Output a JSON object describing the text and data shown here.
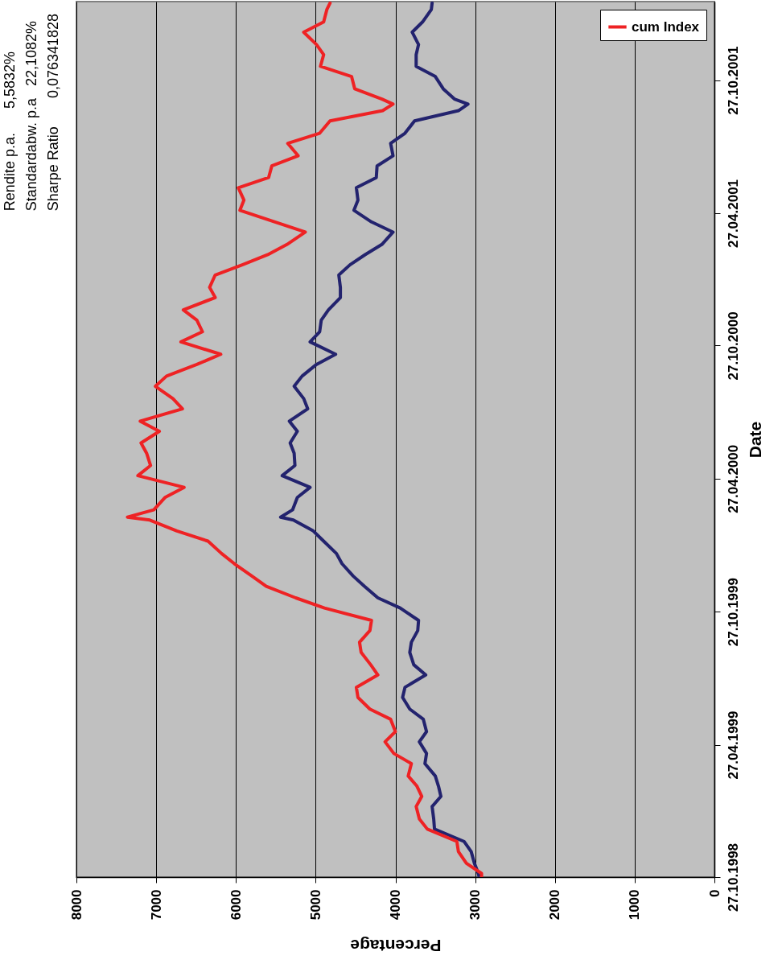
{
  "chart_data": {
    "type": "line",
    "orientation": "horizontal",
    "xlabel": "Percentage",
    "ylabel": "Date",
    "x": [
      "1998-10-27",
      "1998-11-01",
      "1998-11-15",
      "1998-12-01",
      "1998-12-15",
      "1999-01-01",
      "1999-01-15",
      "1999-02-01",
      "1999-02-15",
      "1999-03-01",
      "1999-03-15",
      "1999-04-01",
      "1999-04-15",
      "1999-05-01",
      "1999-05-15",
      "1999-06-01",
      "1999-06-15",
      "1999-07-01",
      "1999-07-15",
      "1999-08-01",
      "1999-08-15",
      "1999-09-01",
      "1999-09-15",
      "1999-10-01",
      "1999-10-15",
      "1999-11-01",
      "1999-11-15",
      "1999-12-01",
      "1999-12-15",
      "2000-01-01",
      "2000-01-15",
      "2000-02-01",
      "2000-02-15",
      "2000-03-01",
      "2000-03-05",
      "2000-03-15",
      "2000-04-01",
      "2000-04-15",
      "2000-05-01",
      "2000-05-15",
      "2000-06-01",
      "2000-06-15",
      "2000-07-01",
      "2000-07-15",
      "2000-08-01",
      "2000-08-15",
      "2000-09-01",
      "2000-09-15",
      "2000-10-01",
      "2000-10-15",
      "2000-11-01",
      "2000-11-15",
      "2000-12-01",
      "2000-12-15",
      "2001-01-01",
      "2001-01-15",
      "2001-02-01",
      "2001-02-15",
      "2001-03-01",
      "2001-03-15",
      "2001-04-01",
      "2001-04-15",
      "2001-05-01",
      "2001-05-15",
      "2001-06-01",
      "2001-06-15",
      "2001-07-01",
      "2001-07-15",
      "2001-08-01",
      "2001-08-15",
      "2001-09-01",
      "2001-09-15",
      "2001-09-24",
      "2001-10-01",
      "2001-10-15",
      "2001-11-01",
      "2001-11-15",
      "2001-12-01",
      "2001-12-15",
      "2002-01-01",
      "2002-01-15",
      "2002-02-01",
      "2002-02-10"
    ],
    "series": [
      {
        "color": "#23236e",
        "values": [
          2950,
          2960,
          3010,
          3050,
          3140,
          3510,
          3520,
          3540,
          3430,
          3460,
          3500,
          3630,
          3610,
          3700,
          3610,
          3650,
          3820,
          3910,
          3880,
          3620,
          3770,
          3820,
          3800,
          3720,
          3710,
          3940,
          4220,
          4390,
          4530,
          4670,
          4740,
          4900,
          5030,
          5280,
          5440,
          5290,
          5230,
          5070,
          5420,
          5260,
          5270,
          5320,
          5230,
          5330,
          5100,
          5150,
          5270,
          5170,
          4990,
          4750,
          5070,
          4950,
          4930,
          4840,
          4690,
          4690,
          4710,
          4570,
          4380,
          4170,
          4030,
          4300,
          4520,
          4470,
          4490,
          4240,
          4230,
          4030,
          4060,
          3880,
          3760,
          3210,
          3090,
          3260,
          3400,
          3500,
          3740,
          3740,
          3710,
          3790,
          3660,
          3550,
          3540
        ]
      },
      {
        "name": "cum Index",
        "color": "#ee2224",
        "values": [
          2920,
          2920,
          3110,
          3210,
          3230,
          3600,
          3700,
          3740,
          3670,
          3730,
          3840,
          3800,
          4020,
          4130,
          4000,
          4060,
          4320,
          4470,
          4490,
          4220,
          4310,
          4430,
          4450,
          4320,
          4300,
          4890,
          5250,
          5620,
          5800,
          6020,
          6180,
          6350,
          6740,
          7080,
          7360,
          7030,
          6890,
          6650,
          7230,
          7070,
          7120,
          7190,
          6960,
          7200,
          6670,
          6790,
          7010,
          6870,
          6490,
          6190,
          6690,
          6420,
          6490,
          6660,
          6260,
          6330,
          6260,
          5920,
          5600,
          5360,
          5130,
          5510,
          5950,
          5900,
          5970,
          5590,
          5550,
          5220,
          5350,
          4950,
          4820,
          4160,
          4030,
          4170,
          4510,
          4550,
          4940,
          4900,
          4990,
          5150,
          4900,
          4860,
          4820
        ]
      }
    ],
    "ylim": [
      "1998-10-27",
      "2002-02-12"
    ],
    "yticks": [
      {
        "value": "1998-10-27",
        "label": "27.10.1998"
      },
      {
        "value": "1999-04-27",
        "label": "27.04.1999"
      },
      {
        "value": "1999-10-27",
        "label": "27.10.1999"
      },
      {
        "value": "2000-04-27",
        "label": "27.04.2000"
      },
      {
        "value": "2000-10-27",
        "label": "27.10.2000"
      },
      {
        "value": "2001-04-27",
        "label": "27.04.2001"
      },
      {
        "value": "2001-10-27",
        "label": "27.10.2001"
      }
    ],
    "xlim": [
      8000,
      0
    ],
    "xticks": [
      8000,
      7000,
      6000,
      5000,
      4000,
      3000,
      2000,
      1000,
      0
    ],
    "grid": "x",
    "legend": "top right",
    "marker": "none",
    "line_style": "solid",
    "annotations": [
      "Rendite p.a.      5,5832%",
      "Standardabw. p.a   22,1082%",
      "Sharpe Ratio       0,076341828"
    ]
  }
}
